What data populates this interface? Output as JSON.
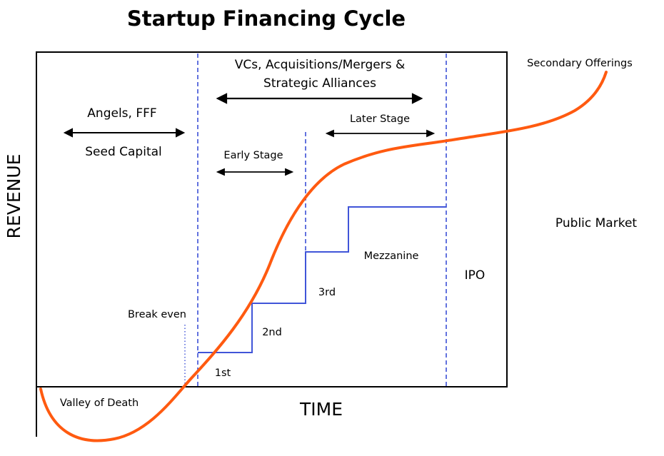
{
  "title": "Startup Financing Cycle",
  "axes": {
    "x_label": "TIME",
    "y_label": "REVENUE"
  },
  "phases": {
    "angels_line1": "Angels, FFF",
    "angels_line2": "Seed Capital",
    "vc_line1": "VCs, Acquisitions/Mergers &",
    "vc_line2": "Strategic Alliances",
    "early_stage": "Early Stage",
    "later_stage": "Later Stage"
  },
  "rounds": [
    "1st",
    "2nd",
    "3rd",
    "Mezzanine"
  ],
  "annotations": {
    "break_even": "Break even",
    "valley": "Valley of Death",
    "ipo": "IPO",
    "public_market": "Public Market",
    "secondary": "Secondary Offerings"
  },
  "colors": {
    "curve": "#ff5a10",
    "steps": "#4055d8",
    "dashed": "#3b4fd6",
    "frame": "#000000"
  }
}
